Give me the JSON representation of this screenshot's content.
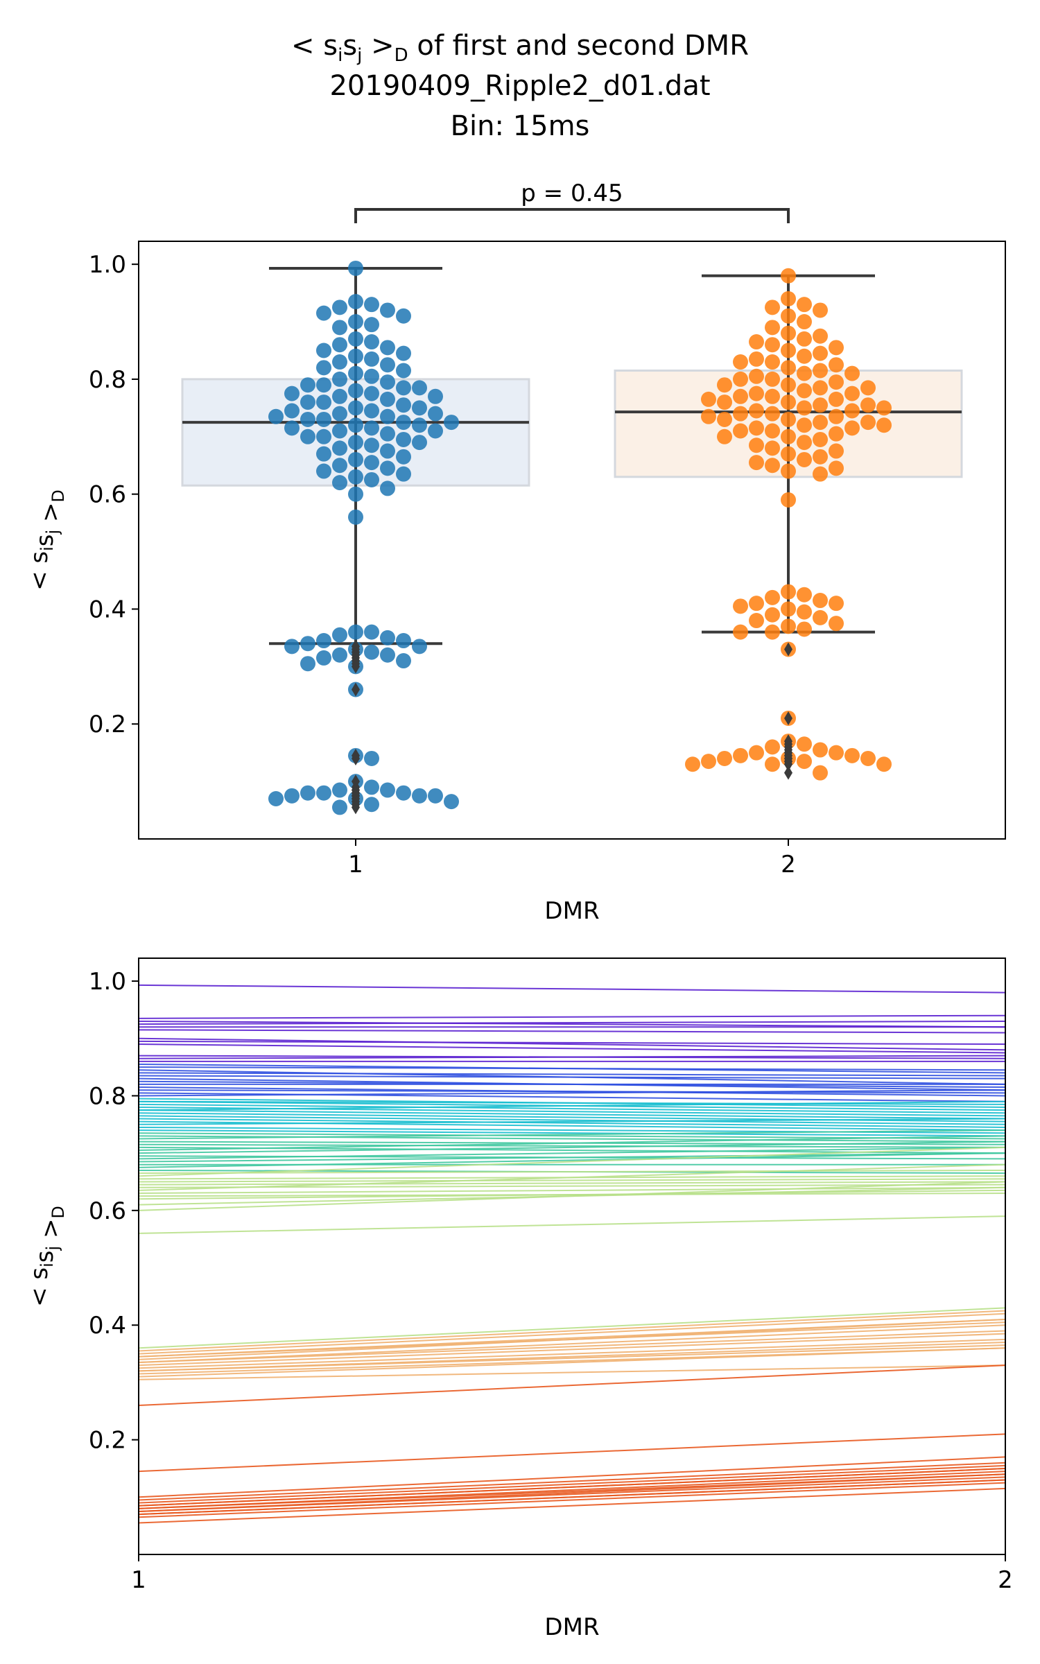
{
  "title_lines": [
    "< sᵢsⱼ >_D of first and second DMR",
    "20190409_Ripple2_d01.dat",
    "Bin: 15ms"
  ],
  "title": {
    "prefix": "< s",
    "sub_i": "i",
    "mid": "s",
    "sub_j": "j",
    "suffix": " >",
    "sub_D": "D",
    "rest": " of first and second DMR"
  },
  "title_line2": "20190409_Ripple2_d01.dat",
  "title_line3": "Bin: 15ms",
  "chart_data": [
    {
      "type": "box+swarm",
      "xlabel": "DMR",
      "ylabel": "< sᵢsⱼ >_D",
      "categories": [
        "1",
        "2"
      ],
      "ylim": [
        0.0,
        1.04
      ],
      "yticks": [
        0.2,
        0.4,
        0.6,
        0.8,
        1.0
      ],
      "annotation": "p = 0.45",
      "colors": {
        "dmr1": "#1f77b4",
        "dmr2": "#ff7f0e",
        "box_line": "#3a3a3a"
      },
      "boxes": [
        {
          "category": "1",
          "q1": 0.615,
          "median": 0.725,
          "q3": 0.8,
          "whisker_low": 0.34,
          "whisker_high": 0.993
        },
        {
          "category": "2",
          "q1": 0.63,
          "median": 0.743,
          "q3": 0.815,
          "whisker_low": 0.36,
          "whisker_high": 0.98
        }
      ],
      "series": [
        {
          "name": "1",
          "values": [
            0.993,
            0.935,
            0.93,
            0.925,
            0.92,
            0.915,
            0.91,
            0.9,
            0.895,
            0.89,
            0.87,
            0.865,
            0.86,
            0.855,
            0.85,
            0.845,
            0.84,
            0.835,
            0.83,
            0.825,
            0.82,
            0.815,
            0.81,
            0.805,
            0.8,
            0.795,
            0.79,
            0.79,
            0.785,
            0.785,
            0.78,
            0.775,
            0.775,
            0.77,
            0.77,
            0.765,
            0.76,
            0.76,
            0.755,
            0.75,
            0.75,
            0.745,
            0.745,
            0.74,
            0.74,
            0.735,
            0.735,
            0.73,
            0.73,
            0.725,
            0.725,
            0.72,
            0.72,
            0.715,
            0.715,
            0.71,
            0.71,
            0.705,
            0.7,
            0.7,
            0.695,
            0.69,
            0.69,
            0.685,
            0.68,
            0.675,
            0.67,
            0.665,
            0.66,
            0.655,
            0.65,
            0.645,
            0.64,
            0.635,
            0.63,
            0.625,
            0.62,
            0.61,
            0.6,
            0.56,
            0.36,
            0.36,
            0.355,
            0.35,
            0.345,
            0.345,
            0.34,
            0.335,
            0.335,
            0.33,
            0.325,
            0.32,
            0.32,
            0.315,
            0.31,
            0.305,
            0.3,
            0.26,
            0.145,
            0.14,
            0.1,
            0.09,
            0.085,
            0.085,
            0.08,
            0.08,
            0.08,
            0.075,
            0.075,
            0.075,
            0.07,
            0.07,
            0.065,
            0.06,
            0.055
          ]
        },
        {
          "name": "2",
          "values": [
            0.98,
            0.94,
            0.93,
            0.925,
            0.92,
            0.91,
            0.9,
            0.89,
            0.88,
            0.875,
            0.87,
            0.865,
            0.86,
            0.855,
            0.85,
            0.845,
            0.84,
            0.835,
            0.83,
            0.83,
            0.825,
            0.82,
            0.815,
            0.81,
            0.81,
            0.805,
            0.8,
            0.8,
            0.795,
            0.79,
            0.79,
            0.785,
            0.785,
            0.78,
            0.775,
            0.775,
            0.77,
            0.77,
            0.765,
            0.765,
            0.76,
            0.76,
            0.755,
            0.755,
            0.75,
            0.75,
            0.745,
            0.745,
            0.74,
            0.74,
            0.735,
            0.735,
            0.73,
            0.73,
            0.725,
            0.725,
            0.72,
            0.72,
            0.715,
            0.715,
            0.71,
            0.71,
            0.705,
            0.7,
            0.7,
            0.695,
            0.69,
            0.685,
            0.68,
            0.675,
            0.67,
            0.665,
            0.66,
            0.655,
            0.65,
            0.645,
            0.64,
            0.635,
            0.59,
            0.43,
            0.425,
            0.42,
            0.415,
            0.41,
            0.41,
            0.405,
            0.4,
            0.395,
            0.39,
            0.385,
            0.38,
            0.375,
            0.37,
            0.365,
            0.36,
            0.36,
            0.33,
            0.21,
            0.17,
            0.165,
            0.16,
            0.155,
            0.15,
            0.15,
            0.145,
            0.145,
            0.14,
            0.14,
            0.14,
            0.135,
            0.135,
            0.13,
            0.13,
            0.13,
            0.115
          ]
        }
      ]
    },
    {
      "type": "line",
      "xlabel": "DMR",
      "ylabel": "< sᵢsⱼ >_D",
      "x": [
        1,
        2
      ],
      "xlim": [
        1,
        2
      ],
      "ylim": [
        0.0,
        1.04
      ],
      "yticks": [
        0.2,
        0.4,
        0.6,
        0.8,
        1.0
      ],
      "pairs": [
        [
          0.993,
          0.98
        ],
        [
          0.935,
          0.94
        ],
        [
          0.93,
          0.92
        ],
        [
          0.925,
          0.93
        ],
        [
          0.92,
          0.92
        ],
        [
          0.915,
          0.91
        ],
        [
          0.9,
          0.88
        ],
        [
          0.895,
          0.89
        ],
        [
          0.89,
          0.875
        ],
        [
          0.87,
          0.865
        ],
        [
          0.865,
          0.87
        ],
        [
          0.86,
          0.86
        ],
        [
          0.855,
          0.84
        ],
        [
          0.85,
          0.845
        ],
        [
          0.845,
          0.82
        ],
        [
          0.84,
          0.835
        ],
        [
          0.835,
          0.83
        ],
        [
          0.83,
          0.81
        ],
        [
          0.825,
          0.815
        ],
        [
          0.82,
          0.82
        ],
        [
          0.815,
          0.8
        ],
        [
          0.81,
          0.805
        ],
        [
          0.805,
          0.79
        ],
        [
          0.8,
          0.81
        ],
        [
          0.795,
          0.78
        ],
        [
          0.79,
          0.775
        ],
        [
          0.79,
          0.785
        ],
        [
          0.785,
          0.77
        ],
        [
          0.78,
          0.765
        ],
        [
          0.775,
          0.76
        ],
        [
          0.775,
          0.79
        ],
        [
          0.77,
          0.755
        ],
        [
          0.765,
          0.75
        ],
        [
          0.76,
          0.745
        ],
        [
          0.755,
          0.74
        ],
        [
          0.75,
          0.76
        ],
        [
          0.745,
          0.735
        ],
        [
          0.74,
          0.73
        ],
        [
          0.735,
          0.725
        ],
        [
          0.73,
          0.72
        ],
        [
          0.725,
          0.74
        ],
        [
          0.72,
          0.715
        ],
        [
          0.715,
          0.71
        ],
        [
          0.71,
          0.7
        ],
        [
          0.705,
          0.73
        ],
        [
          0.7,
          0.72
        ],
        [
          0.695,
          0.69
        ],
        [
          0.69,
          0.71
        ],
        [
          0.685,
          0.7
        ],
        [
          0.68,
          0.68
        ],
        [
          0.675,
          0.7
        ],
        [
          0.67,
          0.665
        ],
        [
          0.665,
          0.67
        ],
        [
          0.66,
          0.71
        ],
        [
          0.655,
          0.66
        ],
        [
          0.65,
          0.655
        ],
        [
          0.645,
          0.65
        ],
        [
          0.64,
          0.645
        ],
        [
          0.635,
          0.68
        ],
        [
          0.63,
          0.64
        ],
        [
          0.625,
          0.63
        ],
        [
          0.62,
          0.635
        ],
        [
          0.61,
          0.64
        ],
        [
          0.6,
          0.65
        ],
        [
          0.56,
          0.59
        ],
        [
          0.36,
          0.43
        ],
        [
          0.355,
          0.425
        ],
        [
          0.35,
          0.42
        ],
        [
          0.345,
          0.41
        ],
        [
          0.345,
          0.405
        ],
        [
          0.34,
          0.41
        ],
        [
          0.335,
          0.4
        ],
        [
          0.335,
          0.39
        ],
        [
          0.33,
          0.385
        ],
        [
          0.325,
          0.375
        ],
        [
          0.32,
          0.37
        ],
        [
          0.32,
          0.365
        ],
        [
          0.315,
          0.36
        ],
        [
          0.31,
          0.36
        ],
        [
          0.305,
          0.33
        ],
        [
          0.26,
          0.33
        ],
        [
          0.145,
          0.21
        ],
        [
          0.1,
          0.17
        ],
        [
          0.095,
          0.16
        ],
        [
          0.09,
          0.155
        ],
        [
          0.085,
          0.15
        ],
        [
          0.085,
          0.15
        ],
        [
          0.08,
          0.145
        ],
        [
          0.08,
          0.14
        ],
        [
          0.075,
          0.14
        ],
        [
          0.075,
          0.135
        ],
        [
          0.07,
          0.13
        ],
        [
          0.07,
          0.13
        ],
        [
          0.065,
          0.125
        ],
        [
          0.055,
          0.115
        ]
      ]
    }
  ]
}
